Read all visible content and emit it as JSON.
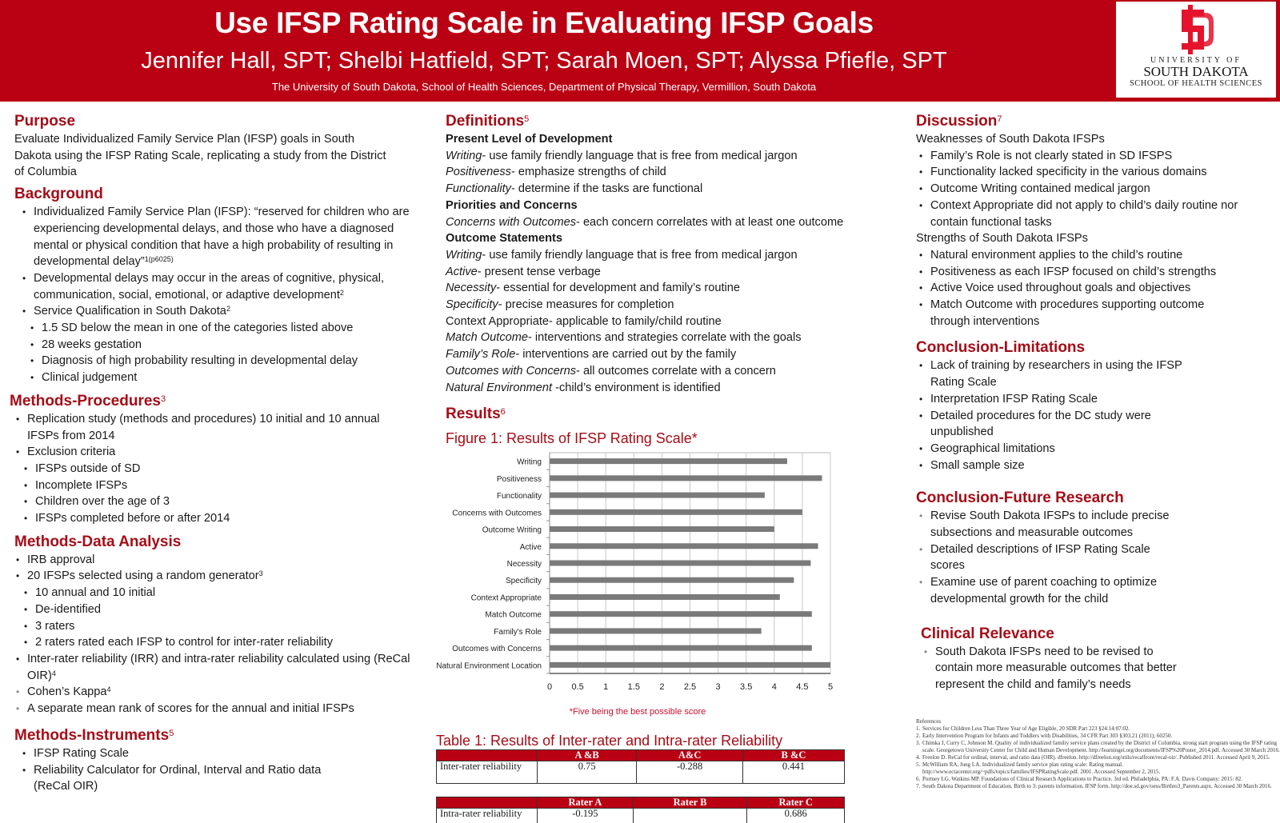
{
  "header": {
    "title": "Use IFSP Rating Scale in Evaluating IFSP Goals",
    "authors": "Jennifer Hall, SPT; Shelbi Hatfield, SPT; Sarah Moen, SPT; Alyssa Pfiefle, SPT",
    "affiliation": "The University of South Dakota, School of Health Sciences, Department of Physical Therapy, Vermillion, South Dakota",
    "logo": {
      "icon": "sd-monogram-logo",
      "line1": "UNIVERSITY OF",
      "line2": "SOUTH DAKOTA",
      "line3": "SCHOOL OF HEALTH SCIENCES",
      "color": "#e4132b"
    }
  },
  "colors": {
    "header_bg": "#ba0013",
    "heading": "#a50d17",
    "bar": "#7a7a7a"
  },
  "purpose": {
    "heading": "Purpose",
    "text": "Evaluate Individualized Family Service Plan (IFSP) goals in South Dakota using the IFSP Rating Scale, replicating a study from the District of Columbia"
  },
  "background": {
    "heading": "Background",
    "b1": "Individualized Family Service Plan (IFSP):  “reserved for children who are experiencing developmental delays, and those who have a diagnosed mental or physical condition that have a high probability of resulting in developmental delay”",
    "b1_sup": "1(p6025)",
    "b2": "Developmental delays may occur in the areas of cognitive, physical, communication, social, emotional, or adaptive development",
    "b2_sup": "2",
    "b3": "Service Qualification in South Dakota",
    "b3_sup": "2",
    "sub": [
      "1.5 SD below the mean in one of the categories listed above",
      "28 weeks gestation",
      "Diagnosis of high probability resulting in developmental delay",
      "Clinical judgement"
    ]
  },
  "methods_procedures": {
    "heading": "Methods-Procedures",
    "sup": "3",
    "b1": "Replication study (methods and procedures) 10 initial and 10 annual IFSPs from 2014",
    "b2": "Exclusion criteria",
    "sub": [
      "IFSPs outside of SD",
      "Incomplete IFSPs",
      "Children over the age of 3",
      "IFSPs completed before or after 2014"
    ]
  },
  "methods_data": {
    "heading": "Methods-Data Analysis",
    "b1": "IRB approval",
    "b2": "20 IFSPs selected using a random generator",
    "b2_sup": "3",
    "sub": [
      "10 annual and 10 initial",
      "De-identified",
      "3 raters",
      "2 raters rated each IFSP to control for inter-rater reliability"
    ],
    "b3": "Inter-rater reliability (IRR) and intra-rater reliability calculated using (ReCal OIR)",
    "b3_sup": "4",
    "b4": "Cohen’s Kappa",
    "b4_sup": "4",
    "b5": "A separate mean rank of scores for the annual and initial IFSPs"
  },
  "methods_instruments": {
    "heading": "Methods-Instruments",
    "sup": "5",
    "items": [
      "IFSP Rating Scale",
      "Reliability Calculator for Ordinal, Interval and Ratio data (ReCal OIR)"
    ]
  },
  "definitions": {
    "heading": "Definitions",
    "sup": "5",
    "groups": [
      {
        "title": "Present Level of Development",
        "items": [
          {
            "term": "Writing",
            "def": "- use family friendly language that is free from medical jargon",
            "italic": true
          },
          {
            "term": "Positiveness",
            "def": "- emphasize strengths of child",
            "italic": true
          },
          {
            "term": "Functionality",
            "def": "- determine if the tasks are functional",
            "italic": true
          }
        ]
      },
      {
        "title": "Priorities and Concerns",
        "items": [
          {
            "term": "Concerns with Outcomes",
            "def": "- each concern correlates with at least one outcome",
            "italic": true
          }
        ]
      },
      {
        "title": "Outcome Statements",
        "items": [
          {
            "term": "Writing",
            "def": "- use family friendly language that is free from medical jargon",
            "italic": true
          },
          {
            "term": "Active",
            "def": "- present tense verbage",
            "italic": true
          },
          {
            "term": "Necessity",
            "def": "- essential for development and family’s routine",
            "italic": true
          },
          {
            "term": "Specificity",
            "def": "- precise measures for completion",
            "italic": true
          },
          {
            "term": "Context Appropriate",
            "def": "-  applicable to family/child routine",
            "italic": false
          },
          {
            "term": "Match Outcome",
            "def": "- interventions and strategies correlate with the goals",
            "italic": true
          },
          {
            "term": "Family’s Role",
            "def": "- interventions are carried out by the family",
            "italic": true
          },
          {
            "term": "Outcomes with Concerns",
            "def": "- all outcomes correlate with a concern",
            "italic": true
          },
          {
            "term": "Natural Environment",
            "def": " -child’s environment is identified",
            "italic": true
          }
        ]
      }
    ]
  },
  "results": {
    "heading": "Results",
    "sup": "6",
    "figure_title": "Figure 1: Results of IFSP Rating Scale*",
    "footnote": "*Five being the best possible score",
    "table_title": "Table 1: Results of Inter-rater and Intra-rater Reliability",
    "inter": {
      "headers": [
        "",
        "A &B",
        "A&C",
        "B &C"
      ],
      "row_label": "Inter-rater reliability",
      "values": [
        "0.75",
        "-0.288",
        "0.441"
      ]
    },
    "intra": {
      "headers": [
        "",
        "Rater A",
        "Rater B",
        "Rater C"
      ],
      "row_label": "Intra-rater reliability",
      "values": [
        "-0.195",
        "",
        "0.686"
      ]
    }
  },
  "chart_data": {
    "type": "bar",
    "orientation": "horizontal",
    "title": "Figure 1: Results of IFSP Rating Scale*",
    "xlabel": "",
    "ylabel": "",
    "categories": [
      "Writing",
      "Positiveness",
      "Functionality",
      "Concerns with Outcomes",
      "Outcome Writing",
      "Active",
      "Necessity",
      "Specificity",
      "Context Appropriate",
      "Match Outcome",
      "Family's Role",
      "Outcomes with Concerns",
      "Natural Environment Location"
    ],
    "values": [
      4.23,
      4.85,
      3.83,
      4.5,
      4.0,
      4.78,
      4.65,
      4.35,
      4.1,
      4.67,
      3.77,
      4.67,
      5.0
    ],
    "xlim": [
      0,
      5
    ],
    "xticks": [
      "0",
      "0.5",
      "1",
      "1.5",
      "2",
      "2.5",
      "3",
      "3.5",
      "4",
      "4.5",
      "5"
    ],
    "grid": true,
    "legend": "none",
    "annotation": "*Five being the best possible score"
  },
  "discussion": {
    "heading": "Discussion",
    "sup": "7",
    "weak_title": "Weaknesses of South Dakota IFSPs",
    "weak": [
      "Family’s Role is not clearly stated in SD IFSPS",
      "Functionality lacked specificity in the various domains",
      "Outcome Writing contained medical jargon",
      "Context Appropriate did not apply to child’s daily routine nor contain functional tasks"
    ],
    "strong_title": "Strengths of South Dakota IFSPs",
    "strong": [
      "Natural environment applies to the child’s routine",
      "Positiveness as each IFSP focused on child’s strengths",
      "Active Voice used throughout goals and objectives",
      "Match Outcome with procedures supporting outcome through interventions"
    ]
  },
  "limitations": {
    "heading": "Conclusion-Limitations",
    "items": [
      "Lack of training by researchers in using the IFSP Rating Scale",
      "Interpretation IFSP Rating Scale",
      "Detailed procedures for the DC study were unpublished",
      "Geographical limitations",
      "Small sample size"
    ]
  },
  "future": {
    "heading": "Conclusion-Future Research",
    "items": [
      "Revise South Dakota IFSPs to include precise subsections and measurable outcomes",
      "Detailed descriptions of IFSP Rating Scale scores",
      "Examine use of parent coaching to optimize developmental growth for the child"
    ]
  },
  "clinical": {
    "heading": "Clinical Relevance",
    "items": [
      "South Dakota IFSPs need to be revised to contain more measurable outcomes that better represent the child and family’s needs"
    ]
  },
  "references": {
    "heading": "References",
    "items": [
      "Services for Children Less Than Three Year of Age Eligible, 20 SDR Part 223 §24:14:07:02.",
      "Early Intervention Program for Infants and Toddlers with Disabilities, 34 CFR Part 303 §303.21 (2011); 60250.",
      "Chimka J, Curry C, Johnson M. Quality of individualized familiy service plans created by the District of Columbia, strong start program using the IFSP rating scale. Georgetown University Center for Child and Human Development. http://learningei.org/documents/IFSP%20Poster_2014.pdf. Accessed 30 March 2016.",
      "Freelon D. ReCal for ordinal, interval, and ratio data (OIR). dfreelon. http://dfreelon.org/utils/recalfront/recal-oir/. Published 2011. Accessed April 9, 2015.",
      "McWilliam RA, Jung LA. Individualized family service plan rating scale: Rating manual. http://www.ectacenter.org/~pdfs/topics/families/IFSPRatingScale.pdf. 2001. Accessed September 2, 2015.",
      "Portney LG, Watkins MP. Foundations of Clinical Research Applications to Practice. 3rd ed. Philadelphia, PA:  F.A. Davis Company; 2015: 82.",
      "South Dakota Department of Education. Birth to 3: parents information. IFSP form. http://doe.sd.gov/oess/Birthto3_Parents.aspx. Accessed 30 March 2016."
    ]
  }
}
